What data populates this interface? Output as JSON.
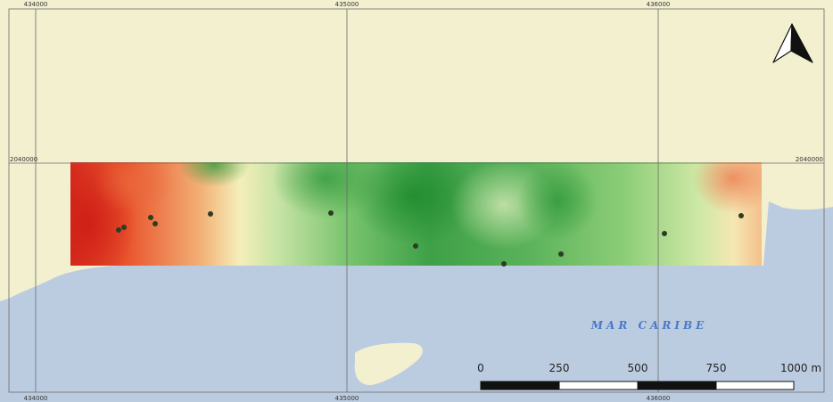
{
  "map": {
    "colors": {
      "land": "#f2f0cf",
      "sea": "#bccce0",
      "grid": "#6b6b6b",
      "sample_point": "#2e3d22",
      "gradient_high": "#d52b1e",
      "gradient_mid": "#f4efba",
      "gradient_low": "#2e9a3a",
      "sea_label": "#4a79c8"
    },
    "grid_labels": {
      "top": [
        "434000",
        "435000",
        "436000"
      ],
      "bottom": [
        "434000",
        "435000",
        "436000"
      ],
      "left": "2040000",
      "right": "2040000"
    },
    "north_arrow": {
      "icon": "north-arrow-icon"
    },
    "sea_label": "MAR CARIBE",
    "scale_bar": {
      "labels": [
        "0",
        "250",
        "500",
        "750",
        "1000 m"
      ]
    }
  }
}
